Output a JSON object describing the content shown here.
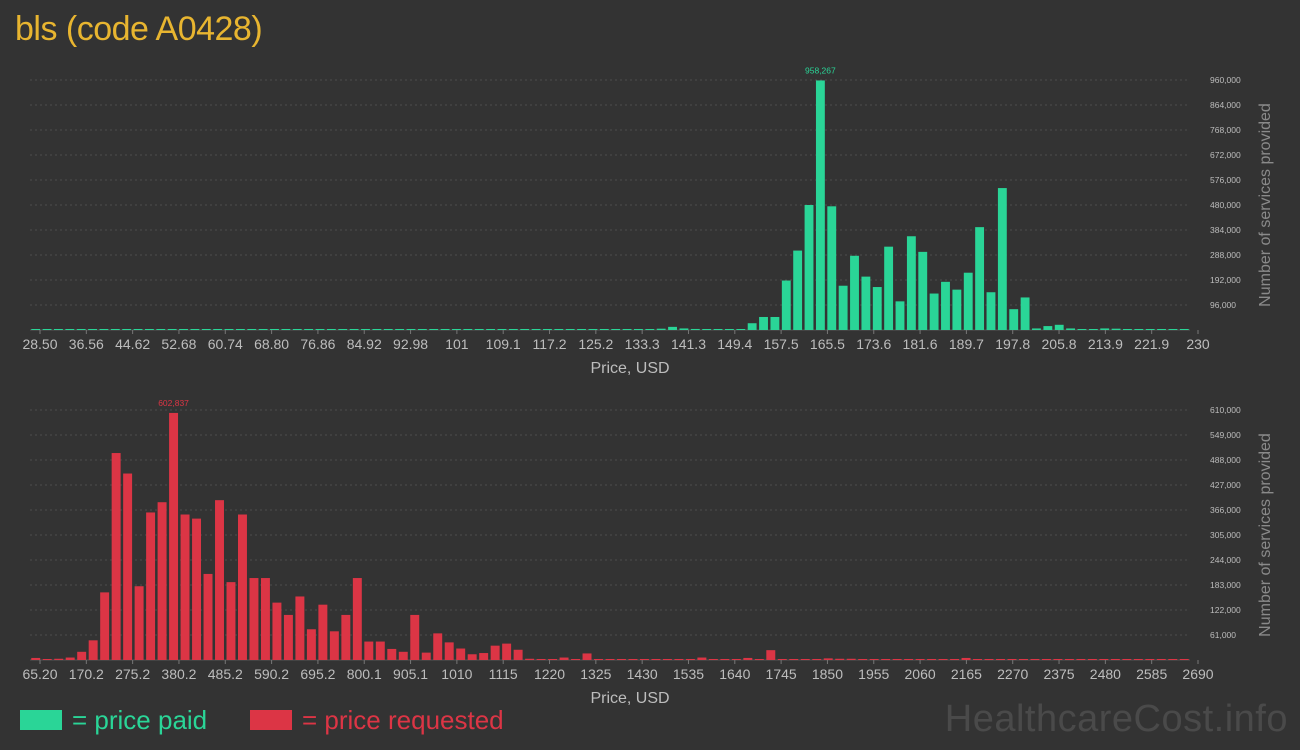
{
  "title": "bls (code A0428)",
  "legend": {
    "paid_label": "= price paid",
    "requested_label": "= price requested",
    "paid_color": "#2ad597",
    "requested_color": "#dc3545"
  },
  "watermark": "HealthcareCost.info",
  "chart_data": [
    {
      "type": "bar",
      "series_name": "price paid",
      "color": "#2ad597",
      "xlabel": "Price, USD",
      "ylabel": "Number of services provided",
      "x_ticks": [
        "28.50",
        "36.56",
        "44.62",
        "52.68",
        "60.74",
        "68.80",
        "76.86",
        "84.92",
        "92.98",
        "101",
        "109.1",
        "117.2",
        "125.2",
        "133.3",
        "141.3",
        "149.4",
        "157.5",
        "165.5",
        "173.6",
        "181.6",
        "189.7",
        "197.8",
        "205.8",
        "213.9",
        "221.9",
        "230"
      ],
      "y_ticks": [
        "96,000",
        "192,000",
        "288,000",
        "384,000",
        "480,000",
        "576,000",
        "672,000",
        "768,000",
        "864,000",
        "960,000"
      ],
      "ylim": [
        0,
        960000
      ],
      "peak_label": "958,267",
      "grid": true,
      "values": [
        1500,
        500,
        500,
        500,
        500,
        500,
        500,
        500,
        500,
        500,
        500,
        500,
        500,
        500,
        500,
        500,
        500,
        500,
        500,
        500,
        500,
        500,
        500,
        500,
        500,
        500,
        1000,
        500,
        2000,
        500,
        1500,
        2000,
        500,
        500,
        500,
        500,
        500,
        500,
        500,
        500,
        500,
        2000,
        500,
        1000,
        1500,
        500,
        1500,
        1500,
        500,
        1000,
        500,
        500,
        1000,
        1000,
        1000,
        5000,
        12000,
        6000,
        4000,
        3000,
        3000,
        3000,
        3000,
        26000,
        50000,
        50000,
        190000,
        305000,
        480000,
        958267,
        475000,
        170000,
        285000,
        205000,
        165000,
        320000,
        110000,
        360000,
        300000,
        140000,
        185000,
        155000,
        220000,
        395000,
        145000,
        545000,
        80000,
        125000,
        6000,
        15000,
        20000,
        6000,
        3000,
        3000,
        6000,
        5000,
        3000,
        3000,
        3000,
        3000,
        3000,
        2000
      ]
    },
    {
      "type": "bar",
      "series_name": "price requested",
      "color": "#dc3545",
      "xlabel": "Price, USD",
      "ylabel": "Number of services provided",
      "x_ticks": [
        "65.20",
        "170.2",
        "275.2",
        "380.2",
        "485.2",
        "590.2",
        "695.2",
        "800.1",
        "905.1",
        "1010",
        "1115",
        "1220",
        "1325",
        "1430",
        "1535",
        "1640",
        "1745",
        "1850",
        "1955",
        "2060",
        "2165",
        "2270",
        "2375",
        "2480",
        "2585",
        "2690"
      ],
      "y_ticks": [
        "61,000",
        "122,000",
        "183,000",
        "244,000",
        "305,000",
        "366,000",
        "427,000",
        "488,000",
        "549,000",
        "610,000"
      ],
      "ylim": [
        0,
        610000
      ],
      "peak_label": "602,837",
      "grid": true,
      "values": [
        5000,
        1000,
        3000,
        6000,
        20000,
        48000,
        165000,
        505000,
        455000,
        180000,
        360000,
        385000,
        602837,
        355000,
        345000,
        210000,
        390000,
        190000,
        355000,
        200000,
        200000,
        140000,
        110000,
        155000,
        75000,
        135000,
        70000,
        110000,
        200000,
        45000,
        45000,
        27000,
        20000,
        110000,
        18000,
        65000,
        43000,
        28000,
        14000,
        17000,
        35000,
        40000,
        25000,
        3000,
        2000,
        2000,
        6000,
        2000,
        16000,
        2000,
        2000,
        2000,
        2000,
        2000,
        2000,
        2000,
        2000,
        2000,
        6000,
        2000,
        2000,
        2000,
        5000,
        2000,
        24000,
        2000,
        2000,
        2000,
        2000,
        4000,
        3000,
        3000,
        2000,
        2000,
        2000,
        2000,
        2000,
        2000,
        2000,
        2000,
        2000,
        5000,
        2000,
        2000,
        2000,
        2000,
        2000,
        2000,
        2000,
        2000,
        2000,
        2000,
        2000,
        2000,
        2000,
        2000,
        2000,
        2000,
        2000,
        2000,
        2000
      ]
    }
  ]
}
